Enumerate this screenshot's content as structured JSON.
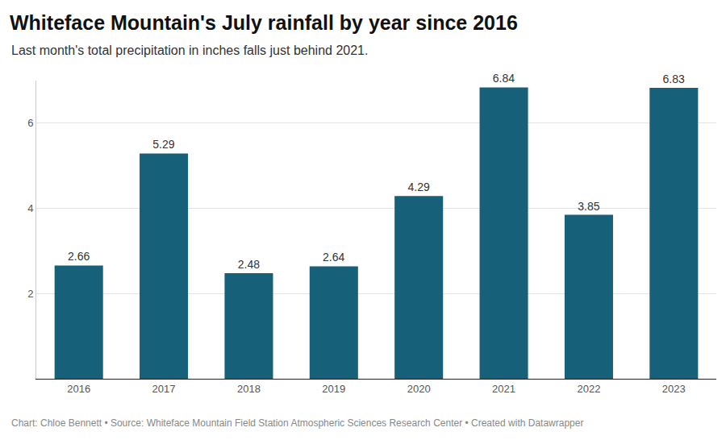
{
  "chart_data": {
    "type": "bar",
    "title": "Whiteface Mountain's July rainfall by year since 2016",
    "subtitle": "Last month's total precipitation in inches falls just behind 2021.",
    "caption": "Chart: Chloe Bennett • Source: Whiteface Mountain Field Station Atmospheric Sciences Research Center • Created with Datawrapper",
    "categories": [
      "2016",
      "2017",
      "2018",
      "2019",
      "2020",
      "2021",
      "2022",
      "2023"
    ],
    "values": [
      2.66,
      5.29,
      2.48,
      2.64,
      4.29,
      6.84,
      3.85,
      6.83
    ],
    "color": "#17607a",
    "ylim": [
      0,
      7
    ],
    "yticks": [
      2,
      4,
      6
    ],
    "grid": true,
    "data_labels": true
  }
}
